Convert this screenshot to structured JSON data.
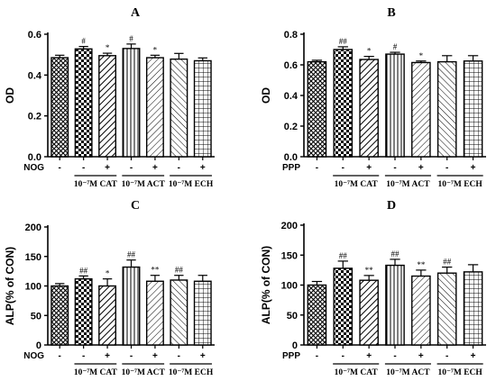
{
  "figure": {
    "panels_description_none": "",
    "group_labels": [
      "10⁻⁷M CAT",
      "10⁻⁷M ACT",
      "10⁻⁷M ECH"
    ],
    "treatment_signs": [
      "-",
      "-",
      "+",
      "-",
      "+",
      "-",
      "+"
    ]
  },
  "chart_data": [
    {
      "type": "bar",
      "title": "A",
      "ylabel": "OD",
      "treatment_label": "NOG",
      "ylim": [
        0,
        0.6
      ],
      "yticks": [
        0.0,
        0.2,
        0.4,
        0.6
      ],
      "ytick_labels": [
        "0.0",
        "0.2",
        "0.4",
        "0.6"
      ],
      "categories": [
        "-",
        "-",
        "+",
        "-",
        "+",
        "-",
        "+"
      ],
      "values": [
        0.485,
        0.528,
        0.495,
        0.53,
        0.485,
        0.478,
        0.47
      ],
      "errors": [
        0.012,
        0.012,
        0.012,
        0.022,
        0.012,
        0.028,
        0.014
      ],
      "annotations": [
        "",
        "#",
        "*",
        "#",
        "*",
        "",
        ""
      ],
      "groups": [
        {
          "label": "10⁻⁷M CAT",
          "bars": [
            1,
            2
          ]
        },
        {
          "label": "10⁻⁷M ACT",
          "bars": [
            3,
            4
          ]
        },
        {
          "label": "10⁻⁷M ECH",
          "bars": [
            5,
            6
          ]
        }
      ],
      "patterns": [
        "cross",
        "check",
        "diag-bold",
        "vert",
        "diag",
        "diag-back",
        "grid"
      ]
    },
    {
      "type": "bar",
      "title": "B",
      "ylabel": "OD",
      "treatment_label": "PPP",
      "ylim": [
        0,
        0.8
      ],
      "yticks": [
        0.0,
        0.2,
        0.4,
        0.6,
        0.8
      ],
      "ytick_labels": [
        "0.0",
        "0.2",
        "0.4",
        "0.6",
        "0.8"
      ],
      "categories": [
        "-",
        "-",
        "+",
        "-",
        "+",
        "-",
        "+"
      ],
      "values": [
        0.62,
        0.7,
        0.635,
        0.67,
        0.615,
        0.62,
        0.625
      ],
      "errors": [
        0.01,
        0.018,
        0.02,
        0.012,
        0.01,
        0.04,
        0.035
      ],
      "annotations": [
        "",
        "##",
        "*",
        "#",
        "*",
        "",
        ""
      ],
      "groups": [
        {
          "label": "10⁻⁷M CAT",
          "bars": [
            1,
            2
          ]
        },
        {
          "label": "10⁻⁷M ACT",
          "bars": [
            3,
            4
          ]
        },
        {
          "label": "10⁻⁷M ECH",
          "bars": [
            5,
            6
          ]
        }
      ],
      "patterns": [
        "cross",
        "check",
        "diag-bold",
        "vert",
        "diag",
        "diag-back",
        "grid"
      ]
    },
    {
      "type": "bar",
      "title": "C",
      "ylabel": "ALP(% of CON)",
      "treatment_label": "NOG",
      "ylim": [
        0,
        200
      ],
      "yticks": [
        0,
        50,
        100,
        150,
        200
      ],
      "ytick_labels": [
        "0",
        "50",
        "100",
        "150",
        "200"
      ],
      "categories": [
        "-",
        "-",
        "+",
        "-",
        "+",
        "-",
        "+"
      ],
      "values": [
        100,
        112,
        100,
        132,
        108,
        110,
        108
      ],
      "errors": [
        4,
        5,
        12,
        12,
        10,
        8,
        10
      ],
      "annotations": [
        "",
        "##",
        "*",
        "##",
        "**",
        "##",
        ""
      ],
      "groups": [
        {
          "label": "10⁻⁷M CAT",
          "bars": [
            1,
            2
          ]
        },
        {
          "label": "10⁻⁷M ACT",
          "bars": [
            3,
            4
          ]
        },
        {
          "label": "10⁻⁷M ECH",
          "bars": [
            5,
            6
          ]
        }
      ],
      "patterns": [
        "cross",
        "check",
        "diag-bold",
        "vert",
        "diag",
        "diag-back",
        "grid"
      ]
    },
    {
      "type": "bar",
      "title": "D",
      "ylabel": "ALP(% of CON)",
      "treatment_label": "PPP",
      "ylim": [
        0,
        200
      ],
      "yticks": [
        0,
        50,
        100,
        150,
        200
      ],
      "ytick_labels": [
        "0",
        "50",
        "100",
        "150",
        "200"
      ],
      "categories": [
        "-",
        "-",
        "+",
        "-",
        "+",
        "-",
        "+"
      ],
      "values": [
        100,
        128,
        108,
        133,
        115,
        120,
        122
      ],
      "errors": [
        6,
        12,
        8,
        10,
        10,
        10,
        12
      ],
      "annotations": [
        "",
        "##",
        "**",
        "##",
        "**",
        "##",
        ""
      ],
      "groups": [
        {
          "label": "10⁻⁷M CAT",
          "bars": [
            1,
            2
          ]
        },
        {
          "label": "10⁻⁷M ACT",
          "bars": [
            3,
            4
          ]
        },
        {
          "label": "10⁻⁷M ECH",
          "bars": [
            5,
            6
          ]
        }
      ],
      "patterns": [
        "cross",
        "check",
        "diag-bold",
        "vert",
        "diag",
        "diag-back",
        "grid"
      ]
    }
  ]
}
